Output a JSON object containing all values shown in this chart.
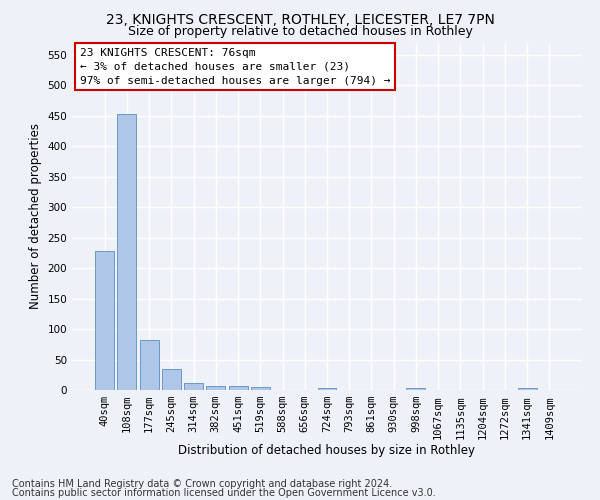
{
  "title_line1": "23, KNIGHTS CRESCENT, ROTHLEY, LEICESTER, LE7 7PN",
  "title_line2": "Size of property relative to detached houses in Rothley",
  "xlabel": "Distribution of detached houses by size in Rothley",
  "ylabel": "Number of detached properties",
  "bar_labels": [
    "40sqm",
    "108sqm",
    "177sqm",
    "245sqm",
    "314sqm",
    "382sqm",
    "451sqm",
    "519sqm",
    "588sqm",
    "656sqm",
    "724sqm",
    "793sqm",
    "861sqm",
    "930sqm",
    "998sqm",
    "1067sqm",
    "1135sqm",
    "1204sqm",
    "1272sqm",
    "1341sqm",
    "1409sqm"
  ],
  "bar_values": [
    228,
    453,
    82,
    35,
    12,
    7,
    6,
    5,
    0,
    0,
    4,
    0,
    0,
    0,
    4,
    0,
    0,
    0,
    0,
    4,
    0
  ],
  "bar_color": "#aec6e8",
  "bar_edge_color": "#5a8fc4",
  "ylim": [
    0,
    570
  ],
  "yticks": [
    0,
    50,
    100,
    150,
    200,
    250,
    300,
    350,
    400,
    450,
    500,
    550
  ],
  "annotation_line1": "23 KNIGHTS CRESCENT: 76sqm",
  "annotation_line2": "← 3% of detached houses are smaller (23)",
  "annotation_line3": "97% of semi-detached houses are larger (794) →",
  "footer_line1": "Contains HM Land Registry data © Crown copyright and database right 2024.",
  "footer_line2": "Contains public sector information licensed under the Open Government Licence v3.0.",
  "background_color": "#eef2f8",
  "grid_color": "#ffffff",
  "title_fontsize": 10,
  "subtitle_fontsize": 9,
  "axis_label_fontsize": 8.5,
  "tick_fontsize": 7.5,
  "annotation_fontsize": 8,
  "footer_fontsize": 7
}
